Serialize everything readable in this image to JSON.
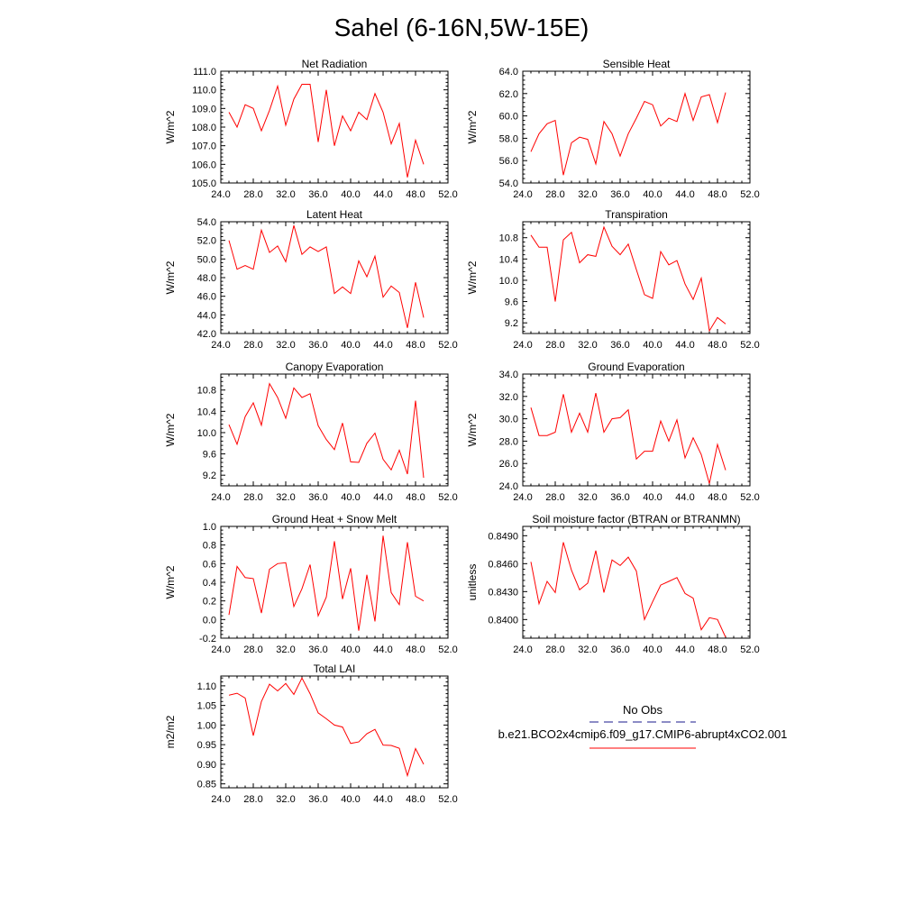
{
  "figure": {
    "title": "Sahel (6-16N,5W-15E)",
    "line_color": "#ff0000",
    "obs_color": "#1a1a8c"
  },
  "legend": {
    "obs_label": "No Obs",
    "model_label": "b.e21.BCO2x4cmip6.f09_g17.CMIP6-abrupt4xCO2.001"
  },
  "chart_data": [
    {
      "type": "line",
      "title": "Net Radiation",
      "ylabel": "W/m^2",
      "xlabel": "",
      "xlim": [
        24,
        52
      ],
      "ylim": [
        105,
        111
      ],
      "xticks": [
        24,
        28,
        32,
        36,
        40,
        44,
        48,
        52
      ],
      "xtick_labels": [
        "24.0",
        "28.0",
        "32.0",
        "36.0",
        "40.0",
        "44.0",
        "48.0",
        "52.0"
      ],
      "yticks": [
        105,
        106,
        107,
        108,
        109,
        110,
        111
      ],
      "ytick_labels": [
        "105.0",
        "106.0",
        "107.0",
        "108.0",
        "109.0",
        "110.0",
        "111.0"
      ],
      "x": [
        25,
        26,
        27,
        28,
        29,
        30,
        31,
        32,
        33,
        34,
        35,
        36,
        37,
        38,
        39,
        40,
        41,
        42,
        43,
        44,
        45,
        46,
        47,
        48,
        49
      ],
      "values": [
        108.8,
        108.0,
        109.2,
        109.0,
        107.8,
        108.9,
        110.2,
        108.1,
        109.5,
        110.3,
        110.3,
        107.2,
        110.0,
        107.0,
        108.6,
        107.8,
        108.8,
        108.4,
        109.8,
        108.8,
        107.1,
        108.2,
        105.3,
        107.3,
        106.0
      ]
    },
    {
      "type": "line",
      "title": "Sensible Heat",
      "ylabel": "W/m^2",
      "xlabel": "",
      "xlim": [
        24,
        52
      ],
      "ylim": [
        54,
        64
      ],
      "xticks": [
        24,
        28,
        32,
        36,
        40,
        44,
        48,
        52
      ],
      "xtick_labels": [
        "24.0",
        "28.0",
        "32.0",
        "36.0",
        "40.0",
        "44.0",
        "48.0",
        "52.0"
      ],
      "yticks": [
        54,
        56,
        58,
        60,
        62,
        64
      ],
      "ytick_labels": [
        "54.0",
        "56.0",
        "58.0",
        "60.0",
        "62.0",
        "64.0"
      ],
      "x": [
        25,
        26,
        27,
        28,
        29,
        30,
        31,
        32,
        33,
        34,
        35,
        36,
        37,
        38,
        39,
        40,
        41,
        42,
        43,
        44,
        45,
        46,
        47,
        48,
        49
      ],
      "values": [
        56.8,
        58.4,
        59.3,
        59.6,
        54.7,
        57.6,
        58.1,
        57.9,
        55.7,
        59.5,
        58.4,
        56.4,
        58.4,
        59.8,
        61.3,
        61.0,
        59.1,
        59.8,
        59.5,
        62.0,
        59.6,
        61.7,
        61.9,
        59.4,
        62.1
      ]
    },
    {
      "type": "line",
      "title": "Latent Heat",
      "ylabel": "W/m^2",
      "xlabel": "",
      "xlim": [
        24,
        52
      ],
      "ylim": [
        42,
        54
      ],
      "xticks": [
        24,
        28,
        32,
        36,
        40,
        44,
        48,
        52
      ],
      "xtick_labels": [
        "24.0",
        "28.0",
        "32.0",
        "36.0",
        "40.0",
        "44.0",
        "48.0",
        "52.0"
      ],
      "yticks": [
        42,
        44,
        46,
        48,
        50,
        52,
        54
      ],
      "ytick_labels": [
        "42.0",
        "44.0",
        "46.0",
        "48.0",
        "50.0",
        "52.0",
        "54.0"
      ],
      "x": [
        25,
        26,
        27,
        28,
        29,
        30,
        31,
        32,
        33,
        34,
        35,
        36,
        37,
        38,
        39,
        40,
        41,
        42,
        43,
        44,
        45,
        46,
        47,
        48,
        49
      ],
      "values": [
        52.0,
        48.9,
        49.3,
        48.9,
        53.1,
        50.7,
        51.4,
        49.7,
        53.6,
        50.5,
        51.3,
        50.8,
        51.3,
        46.3,
        47.0,
        46.3,
        49.8,
        48.1,
        50.3,
        45.9,
        47.1,
        46.4,
        42.6,
        47.5,
        43.7
      ]
    },
    {
      "type": "line",
      "title": "Transpiration",
      "ylabel": "W/m^2",
      "xlabel": "",
      "xlim": [
        24,
        52
      ],
      "ylim": [
        9.0,
        11.1
      ],
      "xticks": [
        24,
        28,
        32,
        36,
        40,
        44,
        48,
        52
      ],
      "xtick_labels": [
        "24.0",
        "28.0",
        "32.0",
        "36.0",
        "40.0",
        "44.0",
        "48.0",
        "52.0"
      ],
      "yticks": [
        9.2,
        9.6,
        10.0,
        10.4,
        10.8
      ],
      "ytick_labels": [
        "9.2",
        "9.6",
        "10.0",
        "10.4",
        "10.8"
      ],
      "x": [
        25,
        26,
        27,
        28,
        29,
        30,
        31,
        32,
        33,
        34,
        35,
        36,
        37,
        38,
        39,
        40,
        41,
        42,
        43,
        44,
        45,
        46,
        47,
        48,
        49
      ],
      "values": [
        10.85,
        10.62,
        10.62,
        9.6,
        10.76,
        10.9,
        10.33,
        10.48,
        10.45,
        11.0,
        10.64,
        10.48,
        10.68,
        10.2,
        9.73,
        9.66,
        10.54,
        10.29,
        10.37,
        9.93,
        9.64,
        10.04,
        9.05,
        9.3,
        9.18
      ]
    },
    {
      "type": "line",
      "title": "Canopy Evaporation",
      "ylabel": "W/m^2",
      "xlabel": "",
      "xlim": [
        24,
        52
      ],
      "ylim": [
        9.0,
        11.1
      ],
      "xticks": [
        24,
        28,
        32,
        36,
        40,
        44,
        48,
        52
      ],
      "xtick_labels": [
        "24.0",
        "28.0",
        "32.0",
        "36.0",
        "40.0",
        "44.0",
        "48.0",
        "52.0"
      ],
      "yticks": [
        9.2,
        9.6,
        10.0,
        10.4,
        10.8
      ],
      "ytick_labels": [
        "9.2",
        "9.6",
        "10.0",
        "10.4",
        "10.8"
      ],
      "x": [
        25,
        26,
        27,
        28,
        29,
        30,
        31,
        32,
        33,
        34,
        35,
        36,
        37,
        38,
        39,
        40,
        41,
        42,
        43,
        44,
        45,
        46,
        47,
        48,
        49
      ],
      "values": [
        10.15,
        9.78,
        10.3,
        10.56,
        10.14,
        10.92,
        10.66,
        10.27,
        10.84,
        10.66,
        10.73,
        10.13,
        9.87,
        9.68,
        10.18,
        9.45,
        9.44,
        9.8,
        9.99,
        9.5,
        9.3,
        9.67,
        9.22,
        10.6,
        9.15
      ]
    },
    {
      "type": "line",
      "title": "Ground Evaporation",
      "ylabel": "W/m^2",
      "xlabel": "",
      "xlim": [
        24,
        52
      ],
      "ylim": [
        24,
        34
      ],
      "xticks": [
        24,
        28,
        32,
        36,
        40,
        44,
        48,
        52
      ],
      "xtick_labels": [
        "24.0",
        "28.0",
        "32.0",
        "36.0",
        "40.0",
        "44.0",
        "48.0",
        "52.0"
      ],
      "yticks": [
        24,
        26,
        28,
        30,
        32,
        34
      ],
      "ytick_labels": [
        "24.0",
        "26.0",
        "28.0",
        "30.0",
        "32.0",
        "34.0"
      ],
      "x": [
        25,
        26,
        27,
        28,
        29,
        30,
        31,
        32,
        33,
        34,
        35,
        36,
        37,
        38,
        39,
        40,
        41,
        42,
        43,
        44,
        45,
        46,
        47,
        48,
        49
      ],
      "values": [
        31.0,
        28.5,
        28.5,
        28.8,
        32.2,
        28.8,
        30.5,
        28.8,
        32.3,
        28.8,
        30.0,
        30.1,
        30.8,
        26.4,
        27.1,
        27.1,
        29.8,
        28.0,
        29.9,
        26.5,
        28.3,
        26.8,
        24.2,
        27.7,
        25.4
      ]
    },
    {
      "type": "line",
      "title": "Ground Heat + Snow Melt",
      "ylabel": "W/m^2",
      "xlabel": "",
      "xlim": [
        24,
        52
      ],
      "ylim": [
        -0.2,
        1.0
      ],
      "xticks": [
        24,
        28,
        32,
        36,
        40,
        44,
        48,
        52
      ],
      "xtick_labels": [
        "24.0",
        "28.0",
        "32.0",
        "36.0",
        "40.0",
        "44.0",
        "48.0",
        "52.0"
      ],
      "yticks": [
        -0.2,
        0.0,
        0.2,
        0.4,
        0.6,
        0.8,
        1.0
      ],
      "ytick_labels": [
        "-0.2",
        "0.0",
        "0.2",
        "0.4",
        "0.6",
        "0.8",
        "1.0"
      ],
      "x": [
        25,
        26,
        27,
        28,
        29,
        30,
        31,
        32,
        33,
        34,
        35,
        36,
        37,
        38,
        39,
        40,
        41,
        42,
        43,
        44,
        45,
        46,
        47,
        48,
        49
      ],
      "values": [
        0.05,
        0.57,
        0.45,
        0.44,
        0.07,
        0.54,
        0.6,
        0.61,
        0.14,
        0.33,
        0.59,
        0.04,
        0.24,
        0.84,
        0.22,
        0.55,
        -0.12,
        0.48,
        -0.02,
        0.9,
        0.29,
        0.16,
        0.83,
        0.25,
        0.2
      ]
    },
    {
      "type": "line",
      "title": "Soil moisture factor (BTRAN or BTRANMN)",
      "ylabel": "unitless",
      "xlabel": "",
      "xlim": [
        24,
        52
      ],
      "ylim": [
        0.838,
        0.85
      ],
      "xticks": [
        24,
        28,
        32,
        36,
        40,
        44,
        48,
        52
      ],
      "xtick_labels": [
        "24.0",
        "28.0",
        "32.0",
        "36.0",
        "40.0",
        "44.0",
        "48.0",
        "52.0"
      ],
      "yticks": [
        0.84,
        0.843,
        0.846,
        0.849
      ],
      "ytick_labels": [
        "0.8400",
        "0.8430",
        "0.8460",
        "0.8490"
      ],
      "x": [
        25,
        26,
        27,
        28,
        29,
        30,
        31,
        32,
        33,
        34,
        35,
        36,
        37,
        38,
        39,
        40,
        41,
        42,
        43,
        44,
        45,
        46,
        47,
        48,
        49
      ],
      "values": [
        0.8462,
        0.8417,
        0.8441,
        0.8429,
        0.8483,
        0.8453,
        0.8432,
        0.8439,
        0.8474,
        0.8429,
        0.8464,
        0.8458,
        0.8467,
        0.8452,
        0.84,
        0.8419,
        0.8437,
        0.8441,
        0.8445,
        0.8428,
        0.8423,
        0.8389,
        0.8402,
        0.84,
        0.8381
      ]
    },
    {
      "type": "line",
      "title": "Total LAI",
      "ylabel": "m2/m2",
      "xlabel": "",
      "xlim": [
        24,
        52
      ],
      "ylim": [
        0.84,
        1.125
      ],
      "xticks": [
        24,
        28,
        32,
        36,
        40,
        44,
        48,
        52
      ],
      "xtick_labels": [
        "24.0",
        "28.0",
        "32.0",
        "36.0",
        "40.0",
        "44.0",
        "48.0",
        "52.0"
      ],
      "yticks": [
        0.85,
        0.9,
        0.95,
        1.0,
        1.05,
        1.1
      ],
      "ytick_labels": [
        "0.85",
        "0.90",
        "0.95",
        "1.00",
        "1.05",
        "1.10"
      ],
      "x": [
        25,
        26,
        27,
        28,
        29,
        30,
        31,
        32,
        33,
        34,
        35,
        36,
        37,
        38,
        39,
        40,
        41,
        42,
        43,
        44,
        45,
        46,
        47,
        48,
        49
      ],
      "values": [
        1.076,
        1.081,
        1.069,
        0.973,
        1.06,
        1.104,
        1.087,
        1.106,
        1.078,
        1.12,
        1.08,
        1.031,
        1.016,
        1.0,
        0.995,
        0.953,
        0.957,
        0.978,
        0.989,
        0.949,
        0.948,
        0.941,
        0.871,
        0.94,
        0.9
      ]
    }
  ]
}
